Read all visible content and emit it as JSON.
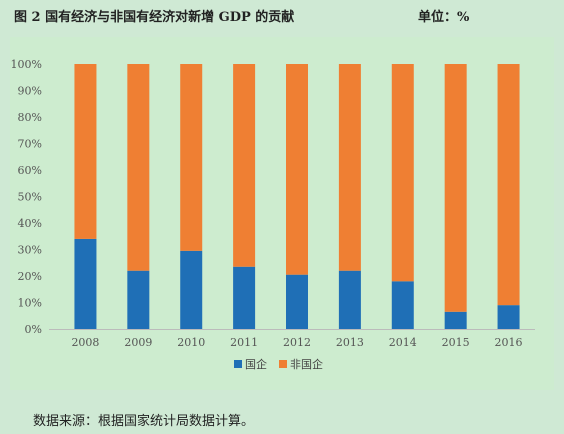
{
  "header": {
    "title": "图 2   国有经济与非国有经济对新增 GDP 的贡献",
    "unit": "单位：%"
  },
  "footer": {
    "source": "数据来源：根据国家统计局数据计算。"
  },
  "colors": {
    "background": "#cfe9d4",
    "plot_background": "#cdeccf",
    "state": "#1f6fb6",
    "non_state": "#ef7f33",
    "axis": "#bbbbbb"
  },
  "chart_data": {
    "type": "bar",
    "stacked": true,
    "title": "",
    "xlabel": "",
    "ylabel": "",
    "categories": [
      "2008",
      "2009",
      "2010",
      "2011",
      "2012",
      "2013",
      "2014",
      "2015",
      "2016"
    ],
    "series": [
      {
        "name": "国企",
        "values": [
          34,
          22,
          29.5,
          23.5,
          20.5,
          22,
          18,
          6.5,
          9
        ]
      },
      {
        "name": "非国企",
        "values": [
          66,
          78,
          70.5,
          76.5,
          79.5,
          78,
          82,
          93.5,
          91
        ]
      }
    ],
    "y_ticks": [
      "0%",
      "10%",
      "20%",
      "30%",
      "40%",
      "50%",
      "60%",
      "70%",
      "80%",
      "90%",
      "100%"
    ],
    "ylim": [
      0,
      100
    ],
    "grid": false,
    "legend_position": "bottom"
  }
}
